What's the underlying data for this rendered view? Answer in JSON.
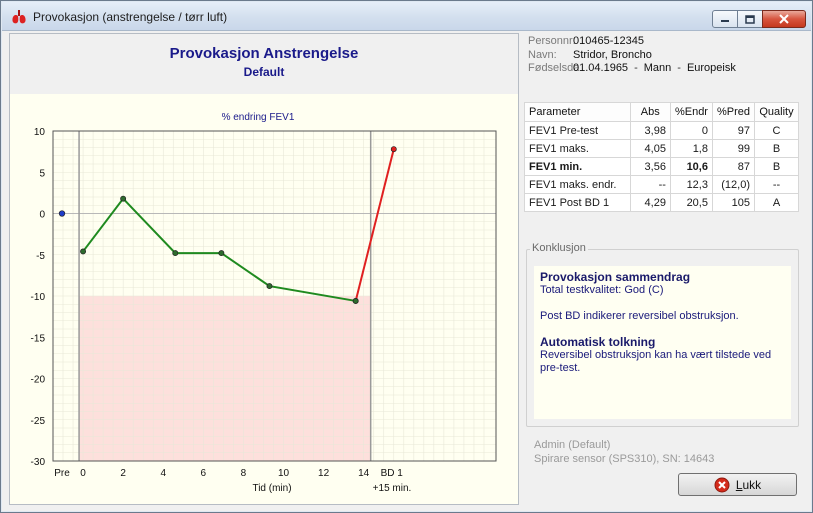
{
  "window": {
    "title": "Provokasjon (anstrengelse / tørr luft)"
  },
  "chart_header": {
    "title": "Provokasjon Anstrengelse",
    "subtitle": "Default"
  },
  "patient": {
    "personnr_label": "Personnr:",
    "personnr": "010465-12345",
    "navn_label": "Navn:",
    "navn": "Stridor, Broncho",
    "fodsel_label": "Fødselsda",
    "fodsel": "01.04.1965",
    "kjonn": "Mann",
    "etnisitet": "Europeisk",
    "separator": "-"
  },
  "results": {
    "headers": [
      "Parameter",
      "Abs",
      "%Endr",
      "%Pred",
      "Quality"
    ],
    "rows": [
      {
        "param": "FEV1 Pre-test",
        "abs": "3,98",
        "endr": "0",
        "pred": "97",
        "quality": "C"
      },
      {
        "param": "FEV1 maks.",
        "abs": "4,05",
        "endr": "1,8",
        "pred": "99",
        "quality": "B"
      },
      {
        "param": "FEV1 min.",
        "abs": "3,56",
        "endr": "10,6",
        "pred": "87",
        "quality": "B"
      },
      {
        "param": "FEV1 maks. endr.",
        "abs": "--",
        "endr": "12,3",
        "pred": "(12,0)",
        "quality": "--"
      },
      {
        "param": "FEV1 Post BD 1",
        "abs": "4,29",
        "endr": "20,5",
        "pred": "105",
        "quality": "A"
      }
    ]
  },
  "konklusjon": {
    "label": "Konklusjon",
    "summary_title": "Provokasjon sammendrag",
    "summary_line": "Total testkvalitet: God (C)",
    "post_bd_line": "Post BD indikerer reversibel obstruksjon.",
    "auto_title": "Automatisk tolkning",
    "auto_line1": "Reversibel obstruksjon kan ha vært tilstede ved",
    "auto_line2": "pre-test."
  },
  "footer": {
    "admin": "Admin (Default)",
    "sensor": "Spirare sensor (SPS310), SN: 14643"
  },
  "buttons": {
    "close_label": "Lukk"
  },
  "chart_data": {
    "type": "line",
    "title": "% endring FEV1",
    "xlabel": "Tid (min)",
    "xlabel2": "+15 min.",
    "ylim": [
      -30,
      10
    ],
    "y_ticks": [
      10,
      5,
      0,
      -5,
      -10,
      -15,
      -20,
      -25,
      -30
    ],
    "x_tick_labels": [
      "Pre",
      "0",
      "2",
      "4",
      "6",
      "8",
      "10",
      "12",
      "14",
      "BD 1"
    ],
    "threshold": -10,
    "grid": true,
    "series": [
      {
        "color": "#1f8a1f",
        "points": [
          {
            "x": "0",
            "y": -4.6
          },
          {
            "x": "2",
            "y": 1.8
          },
          {
            "x": "4.6",
            "y": -4.8
          },
          {
            "x": "6.9",
            "y": -4.8
          },
          {
            "x": "9.3",
            "y": -8.8
          },
          {
            "x": "13.6",
            "y": -10.6
          }
        ]
      },
      {
        "color": "#e02020",
        "points": [
          {
            "x": "13.6",
            "y": -10.6
          },
          {
            "x": "BD 1",
            "y": 7.8
          }
        ]
      }
    ],
    "pre_point": {
      "x": "Pre",
      "y": 0.0,
      "color": "#1e3cc8"
    },
    "colors": {
      "threshold_fill": "#fde0dc",
      "grid": "#e8e8d8",
      "marker": "#2a2a2a"
    }
  }
}
